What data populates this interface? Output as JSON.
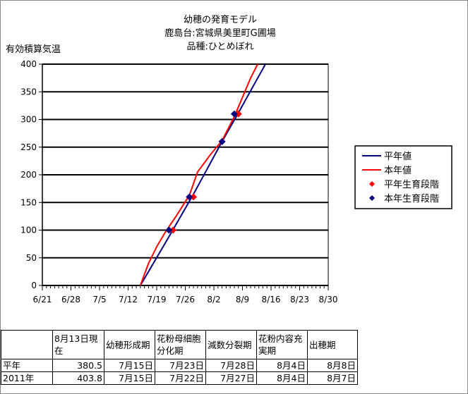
{
  "chart_data": {
    "type": "line",
    "title": [
      "幼穂の発育モデル",
      "鹿島台:宮城県美里町G圃場",
      "品種:ひとめぼれ"
    ],
    "ylabel": "有効積算気温",
    "xlabel": "",
    "ylim": [
      0,
      400
    ],
    "yticks": [
      0,
      50,
      100,
      150,
      200,
      250,
      300,
      350,
      400
    ],
    "xticks": [
      "6/21",
      "6/28",
      "7/5",
      "7/12",
      "7/19",
      "7/26",
      "8/2",
      "8/9",
      "8/16",
      "8/23",
      "8/30"
    ],
    "xlim": [
      "6/21",
      "8/30"
    ],
    "grid": "horizontal",
    "legend_position": "right",
    "series": [
      {
        "name": "平年値",
        "kind": "line",
        "color": "#000080",
        "x": [
          "7/15",
          "7/22",
          "7/28",
          "8/4",
          "8/8",
          "8/15"
        ],
        "y": [
          0,
          88,
          165,
          260,
          312,
          405
        ]
      },
      {
        "name": "本年値",
        "kind": "line",
        "color": "#ff0000",
        "x": [
          "7/15",
          "7/17",
          "7/19",
          "7/21",
          "7/24",
          "7/27",
          "7/29",
          "8/1",
          "8/4",
          "8/7",
          "8/9",
          "8/11",
          "8/13"
        ],
        "y": [
          0,
          40,
          70,
          95,
          128,
          163,
          205,
          235,
          262,
          305,
          340,
          375,
          404
        ]
      },
      {
        "name": "平年生育段階",
        "kind": "marker",
        "color": "#ff0000",
        "x": [
          "7/23",
          "7/28",
          "8/4",
          "8/8"
        ],
        "y": [
          100,
          160,
          260,
          310
        ]
      },
      {
        "name": "本年生育段階",
        "kind": "marker",
        "color": "#000080",
        "x": [
          "7/22",
          "7/27",
          "8/4",
          "8/7"
        ],
        "y": [
          100,
          160,
          260,
          310
        ]
      }
    ]
  },
  "table": {
    "headers": [
      "",
      "8月13日現在",
      "幼穂形成期",
      "花粉母細胞分化期",
      "減数分裂期",
      "花粉内容充実期",
      "出穂期"
    ],
    "rows": [
      [
        "平年",
        "380.5",
        "7月15日",
        "7月23日",
        "7月28日",
        "8月4日",
        "8月8日"
      ],
      [
        "2011年",
        "403.8",
        "7月15日",
        "7月22日",
        "7月27日",
        "8月4日",
        "8月7日"
      ]
    ]
  }
}
